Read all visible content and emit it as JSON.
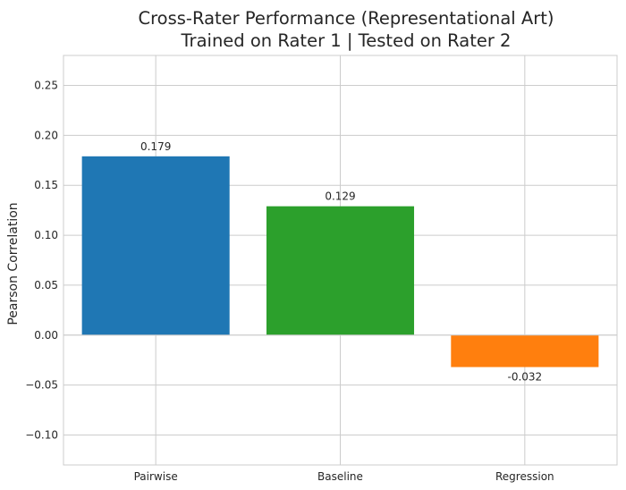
{
  "chart_data": {
    "type": "bar",
    "title": "Cross-Rater Performance (Representational Art)",
    "subtitle": "Trained on Rater 1 | Tested on Rater 2",
    "xlabel": "",
    "ylabel": "Pearson Correlation",
    "categories": [
      "Pairwise",
      "Baseline",
      "Regression"
    ],
    "values": [
      0.179,
      0.129,
      -0.032
    ],
    "value_labels": [
      "0.179",
      "0.129",
      "-0.032"
    ],
    "colors": [
      "#1f77b4",
      "#2ca02c",
      "#ff7f0e"
    ],
    "ylim": [
      -0.13,
      0.28
    ],
    "yticks": [
      -0.1,
      -0.05,
      0.0,
      0.05,
      0.1,
      0.15,
      0.2,
      0.25
    ],
    "ytick_labels": [
      "−0.10",
      "−0.05",
      "0.00",
      "0.05",
      "0.10",
      "0.15",
      "0.20",
      "0.25"
    ],
    "grid": true,
    "legend": "none"
  }
}
